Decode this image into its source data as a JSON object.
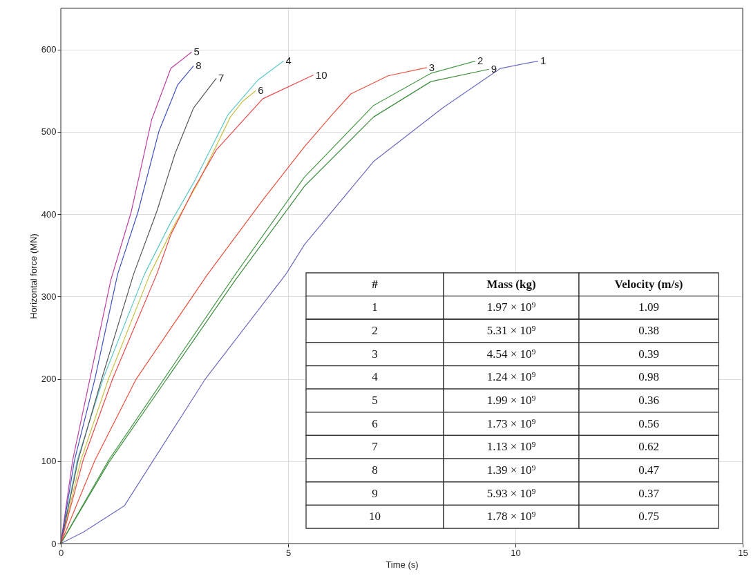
{
  "chart_data": {
    "type": "line",
    "xlabel": "Time (s)",
    "ylabel": "Horizontal force (MN)",
    "xlim": [
      0,
      15
    ],
    "ylim": [
      0,
      650
    ],
    "xticks": [
      0,
      5,
      10,
      15
    ],
    "yticks": [
      0,
      100,
      200,
      300,
      400,
      500,
      600
    ],
    "grid": true,
    "marker": "none",
    "line_style": "solid",
    "series": [
      {
        "name": "1",
        "color": "#6a6ac0",
        "x": [
          0,
          0.5,
          1.4,
          2,
          3.18,
          4.95,
          5.36,
          6.88,
          8.4,
          9.67,
          10.5
        ],
        "values": [
          0,
          14,
          46,
          98,
          200,
          327,
          363,
          464,
          529,
          577,
          586
        ]
      },
      {
        "name": "2",
        "color": "#4a9a4a",
        "x": [
          0,
          1.05,
          2.27,
          3.84,
          5.36,
          6.88,
          8.14,
          9.12
        ],
        "values": [
          0,
          101,
          200,
          327,
          445,
          532,
          571,
          586
        ]
      },
      {
        "name": "3",
        "color": "#e8503c",
        "x": [
          0,
          0.75,
          1.66,
          3.23,
          4.44,
          5.36,
          5.97,
          6.38,
          7.2,
          8.05
        ],
        "values": [
          0,
          101,
          200,
          327,
          417,
          482,
          521,
          546,
          568,
          578
        ]
      },
      {
        "name": "4",
        "color": "#5cc8c8",
        "x": [
          0,
          0.36,
          0.93,
          1.84,
          2.4,
          2.93,
          3.68,
          4.34,
          4.9
        ],
        "values": [
          0,
          101,
          200,
          327,
          388,
          439,
          521,
          563,
          586
        ]
      },
      {
        "name": "5",
        "color": "#c040a0",
        "x": [
          0,
          0.26,
          0.64,
          1.1,
          1.55,
          2.0,
          2.42,
          2.88
        ],
        "values": [
          0,
          101,
          200,
          320,
          403,
          515,
          577,
          597
        ]
      },
      {
        "name": "6",
        "color": "#c8c040",
        "x": [
          0,
          0.44,
          1.05,
          1.96,
          2.51,
          3.03,
          3.73,
          4.0,
          4.29
        ],
        "values": [
          0,
          101,
          200,
          327,
          388,
          439,
          518,
          537,
          550
        ]
      },
      {
        "name": "7",
        "color": "#555555",
        "x": [
          0,
          0.38,
          0.9,
          1.6,
          2.11,
          2.51,
          2.92,
          3.42
        ],
        "values": [
          0,
          101,
          200,
          327,
          403,
          473,
          529,
          565
        ]
      },
      {
        "name": "8",
        "color": "#4050c0",
        "x": [
          0,
          0.3,
          0.75,
          1.25,
          1.7,
          2.16,
          2.57,
          2.92
        ],
        "values": [
          0,
          101,
          200,
          327,
          403,
          501,
          557,
          580
        ]
      },
      {
        "name": "9",
        "color": "#3c8c3c",
        "x": [
          0,
          1.05,
          2.27,
          3.84,
          5.36,
          6.88,
          8.14,
          9.42
        ],
        "values": [
          0,
          98,
          195,
          320,
          434,
          518,
          561,
          576
        ]
      },
      {
        "name": "10",
        "color": "#e84848",
        "x": [
          0,
          0.49,
          1.14,
          2.11,
          2.42,
          2.92,
          3.42,
          4.44,
          5.56
        ],
        "values": [
          0,
          101,
          200,
          327,
          375,
          430,
          478,
          540,
          569
        ]
      }
    ],
    "annotations": [
      "#",
      "Mass (kg)",
      "Velocity (m/s)",
      "1",
      "1.97 × 10⁹",
      "1.09",
      "2",
      "5.31 × 10⁹",
      "0.38",
      "3",
      "4.54 × 10⁹",
      "0.39",
      "4",
      "1.24 × 10⁹",
      "0.98",
      "5",
      "1.99 × 10⁹",
      "0.36",
      "6",
      "1.73 × 10⁹",
      "0.56",
      "7",
      "1.13 × 10⁹",
      "0.62",
      "8",
      "1.39 × 10⁹",
      "0.47",
      "9",
      "5.93 × 10⁹",
      "0.37",
      "10",
      "1.78 × 10⁹",
      "0.75"
    ]
  }
}
